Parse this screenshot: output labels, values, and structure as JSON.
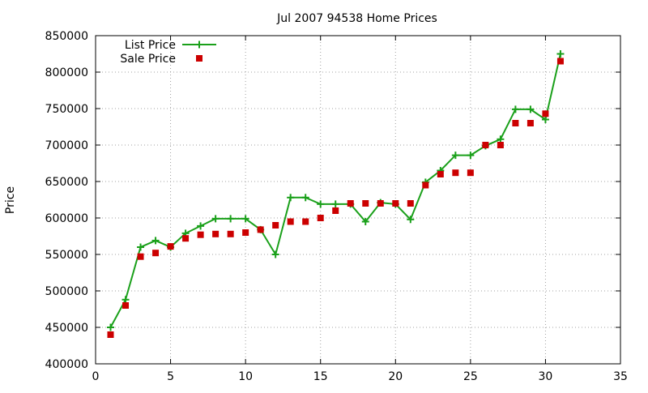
{
  "chart_data": {
    "type": "line",
    "title": "Jul 2007 94538 Home Prices",
    "xlabel": "",
    "ylabel": "Price",
    "xlim": [
      0,
      35
    ],
    "ylim": [
      400000,
      850000
    ],
    "xticks": [
      "0",
      "5",
      "10",
      "15",
      "20",
      "25",
      "30",
      "35"
    ],
    "yticks": [
      "400000",
      "450000",
      "500000",
      "550000",
      "600000",
      "650000",
      "700000",
      "750000",
      "800000",
      "850000"
    ],
    "grid": true,
    "legend_position": "top-left",
    "series": [
      {
        "name": "List Price",
        "style": "lines+points",
        "color": "#1aa01a",
        "x": [
          1,
          2,
          3,
          4,
          5,
          6,
          7,
          8,
          9,
          10,
          11,
          12,
          13,
          14,
          15,
          16,
          17,
          18,
          19,
          20,
          21,
          22,
          23,
          24,
          25,
          26,
          27,
          28,
          29,
          30,
          31
        ],
        "y": [
          450000,
          488000,
          560000,
          569000,
          560000,
          579000,
          589000,
          599000,
          599000,
          599000,
          584000,
          550000,
          628000,
          628000,
          619000,
          619000,
          619000,
          595000,
          621000,
          619000,
          598000,
          649000,
          665000,
          686000,
          686000,
          699000,
          708000,
          749000,
          749000,
          735000,
          825000
        ]
      },
      {
        "name": "Sale Price",
        "style": "points",
        "color": "#cc0000",
        "x": [
          1,
          2,
          3,
          4,
          5,
          6,
          7,
          8,
          9,
          10,
          11,
          12,
          13,
          14,
          15,
          16,
          17,
          18,
          19,
          20,
          21,
          22,
          23,
          24,
          25,
          26,
          27,
          28,
          29,
          30,
          31
        ],
        "y": [
          440000,
          480000,
          547000,
          552000,
          561000,
          572000,
          577000,
          578000,
          578000,
          580000,
          584000,
          590000,
          595000,
          595000,
          600000,
          610000,
          620000,
          620000,
          620000,
          620000,
          620000,
          645000,
          660000,
          662000,
          662000,
          700000,
          700000,
          730000,
          730000,
          743000,
          815000
        ]
      }
    ]
  }
}
